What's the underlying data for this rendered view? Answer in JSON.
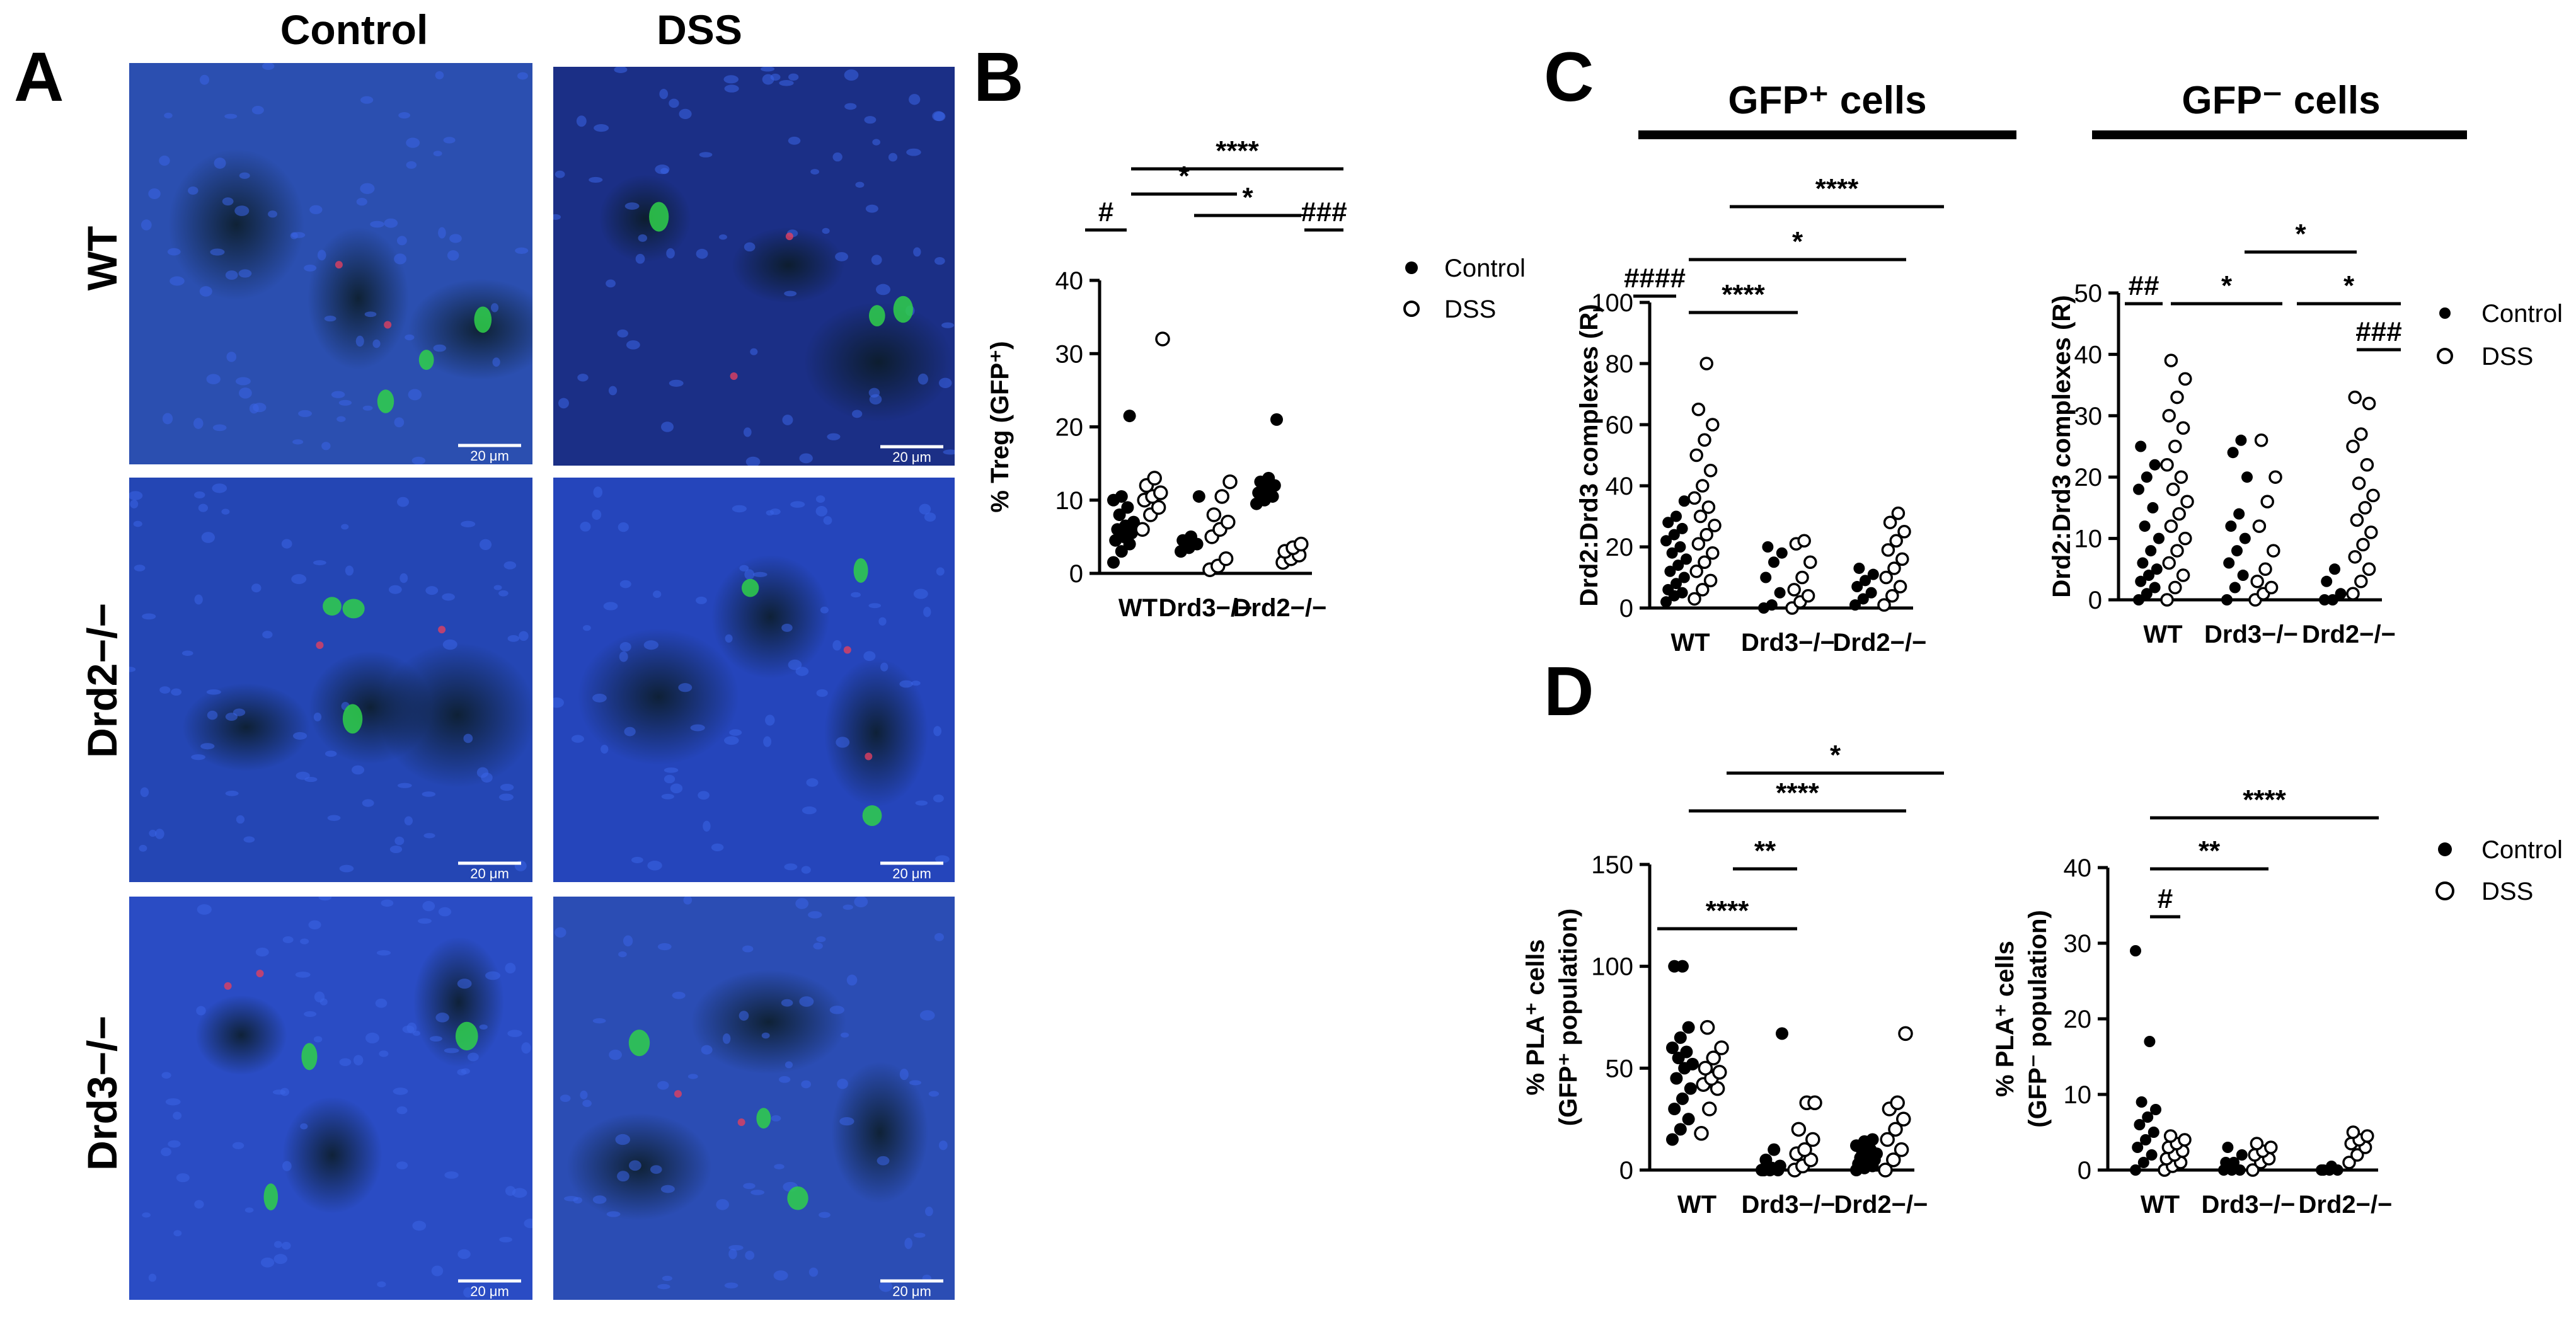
{
  "panel_letters": {
    "a": "A",
    "b": "B",
    "c": "C",
    "d": "D"
  },
  "micrographs": {
    "columns": [
      "Control",
      "DSS"
    ],
    "rows": [
      "WT",
      "Drd2−/−",
      "Drd3−/−"
    ],
    "scale_bar": "20 μm"
  },
  "legend": {
    "control": "Control",
    "dss": "DSS"
  },
  "headers": {
    "gfp_pos": "GFP⁺ cells",
    "gfp_neg": "GFP⁻ cells"
  },
  "colors": {
    "nuclei": "#2a44c8",
    "gfp": "#2fd04a",
    "pla": "#e04060"
  },
  "chart_data": [
    {
      "id": "B",
      "type": "scatter",
      "ylabel": "% Treg (GFP⁺)",
      "ylim": [
        0,
        40
      ],
      "yticks": [
        0,
        10,
        20,
        30,
        40
      ],
      "categories": [
        "WT",
        "Drd3−/−",
        "Drd2−/−"
      ],
      "series": [
        {
          "name": "Control",
          "values": [
            [
              1.5,
              3,
              4,
              4.5,
              5,
              5.5,
              6,
              6.5,
              7,
              8,
              9,
              10,
              10.5,
              21.5
            ],
            [
              3,
              3.5,
              4,
              4.5,
              5,
              10.5
            ],
            [
              9.5,
              10,
              10.5,
              11,
              11.5,
              12,
              12.5,
              13,
              21
            ]
          ]
        },
        {
          "name": "DSS",
          "values": [
            [
              6,
              8,
              9,
              10,
              10.5,
              11,
              12,
              13,
              32
            ],
            [
              0.5,
              1,
              2,
              5,
              6,
              7,
              8,
              10.5,
              12.5
            ],
            [
              1.5,
              2,
              2.5,
              3,
              3.5,
              4
            ]
          ]
        }
      ],
      "significance": [
        {
          "label": "#",
          "from": "WT Control",
          "to": "WT DSS"
        },
        {
          "label": "*",
          "from": "WT DSS",
          "to": "Drd3−/− DSS"
        },
        {
          "label": "****",
          "from": "WT DSS",
          "to": "Drd2−/− DSS"
        },
        {
          "label": "*",
          "from": "Drd3−/− DSS",
          "to": "Drd2−/− DSS"
        },
        {
          "label": "###",
          "from": "Drd2−/− Control",
          "to": "Drd2−/− DSS"
        }
      ]
    },
    {
      "id": "C-GFP+",
      "type": "scatter",
      "ylabel": "Drd2:Drd3 complexes (R)",
      "ylim": [
        0,
        100
      ],
      "yticks": [
        0,
        20,
        40,
        60,
        80,
        100
      ],
      "categories": [
        "WT",
        "Drd3−/−",
        "Drd2−/−"
      ],
      "series": [
        {
          "name": "Control",
          "values": [
            [
              2,
              4,
              5,
              6,
              8,
              10,
              12,
              14,
              16,
              18,
              20,
              22,
              24,
              26,
              28,
              30,
              35
            ],
            [
              0,
              1,
              5,
              10,
              15,
              18,
              20
            ],
            [
              1,
              3,
              5,
              7,
              9,
              11,
              13
            ]
          ]
        },
        {
          "name": "DSS",
          "values": [
            [
              3,
              6,
              9,
              12,
              15,
              18,
              21,
              24,
              27,
              30,
              33,
              36,
              40,
              45,
              50,
              55,
              60,
              65,
              80
            ],
            [
              0,
              2,
              4,
              6,
              10,
              15,
              21,
              22
            ],
            [
              1,
              4,
              7,
              10,
              13,
              16,
              19,
              22,
              25,
              28,
              31
            ]
          ]
        }
      ],
      "significance": [
        {
          "label": "####",
          "from": "WT Control",
          "to": "WT DSS"
        },
        {
          "label": "****",
          "from": "WT DSS",
          "to": "Drd3−/− DSS"
        },
        {
          "label": "*",
          "from": "WT DSS",
          "to": "Drd2−/− Control"
        },
        {
          "label": "****",
          "from": "WT DSS",
          "to": "Drd2−/− DSS"
        }
      ]
    },
    {
      "id": "C-GFP-",
      "type": "scatter",
      "ylabel": "Drd2:Drd3 complexes (R)",
      "ylim": [
        0,
        50
      ],
      "yticks": [
        0,
        10,
        20,
        30,
        40,
        50
      ],
      "categories": [
        "WT",
        "Drd3−/−",
        "Drd2−/−"
      ],
      "series": [
        {
          "name": "Control",
          "values": [
            [
              0,
              1,
              2,
              3,
              4,
              5,
              6,
              8,
              10,
              12,
              15,
              18,
              20,
              22,
              25
            ],
            [
              0,
              2,
              4,
              6,
              8,
              10,
              12,
              14,
              20,
              24,
              26
            ],
            [
              0,
              0,
              1,
              3,
              5
            ]
          ]
        },
        {
          "name": "DSS",
          "values": [
            [
              0,
              2,
              4,
              6,
              8,
              10,
              12,
              14,
              16,
              18,
              20,
              22,
              25,
              28,
              30,
              33,
              36,
              39
            ],
            [
              0,
              1,
              2,
              3,
              5,
              8,
              12,
              16,
              20,
              26
            ],
            [
              1,
              3,
              5,
              7,
              9,
              11,
              13,
              15,
              17,
              19,
              22,
              25,
              27,
              32,
              33
            ]
          ]
        }
      ],
      "significance": [
        {
          "label": "##",
          "from": "WT Control",
          "to": "WT DSS"
        },
        {
          "label": "*",
          "from": "WT DSS",
          "to": "Drd3−/− DSS"
        },
        {
          "label": "*",
          "from": "Drd3−/− Control",
          "to": "Drd2−/− Control"
        },
        {
          "label": "*",
          "from": "Drd3−/− DSS",
          "to": "Drd2−/− DSS"
        },
        {
          "label": "###",
          "from": "Drd2−/− Control",
          "to": "Drd2−/− DSS"
        }
      ]
    },
    {
      "id": "D-GFP+",
      "type": "scatter",
      "ylabel": "% PLA⁺ cells",
      "ylabel2": "(GFP⁺ population)",
      "ylim": [
        0,
        150
      ],
      "yticks": [
        0,
        50,
        100,
        150
      ],
      "categories": [
        "WT",
        "Drd3−/−",
        "Drd2−/−"
      ],
      "series": [
        {
          "name": "Control",
          "values": [
            [
              15,
              20,
              25,
              30,
              35,
              40,
              45,
              50,
              52,
              55,
              58,
              60,
              65,
              70,
              100,
              100
            ],
            [
              0,
              0,
              0,
              0,
              1,
              2,
              5,
              10,
              67
            ],
            [
              0,
              1,
              2,
              3,
              4,
              5,
              6,
              7,
              8,
              9,
              10,
              12,
              14,
              15
            ]
          ]
        },
        {
          "name": "DSS",
          "values": [
            [
              18,
              30,
              40,
              42,
              45,
              48,
              50,
              55,
              60,
              70
            ],
            [
              0,
              2,
              5,
              8,
              10,
              15,
              20,
              33,
              33
            ],
            [
              0,
              5,
              10,
              15,
              20,
              25,
              30,
              33,
              67
            ]
          ]
        }
      ],
      "significance": [
        {
          "label": "****",
          "from": "WT Control",
          "to": "Drd3−/− Control"
        },
        {
          "label": "**",
          "from": "WT DSS",
          "to": "Drd3−/− DSS"
        },
        {
          "label": "****",
          "from": "WT Control",
          "to": "Drd2−/− Control"
        },
        {
          "label": "*",
          "from": "WT DSS",
          "to": "Drd2−/− DSS"
        }
      ]
    },
    {
      "id": "D-GFP-",
      "type": "scatter",
      "ylabel": "% PLA⁺ cells",
      "ylabel2": "(GFP⁻ population)",
      "ylim": [
        0,
        40
      ],
      "yticks": [
        0,
        10,
        20,
        30,
        40
      ],
      "categories": [
        "WT",
        "Drd3−/−",
        "Drd2−/−"
      ],
      "series": [
        {
          "name": "Control",
          "values": [
            [
              0,
              1,
              2,
              3,
              4,
              5,
              6,
              7,
              8,
              9,
              17,
              29
            ],
            [
              0,
              0,
              0,
              1,
              1,
              2,
              3
            ],
            [
              0,
              0,
              0,
              0,
              0.5
            ]
          ]
        },
        {
          "name": "DSS",
          "values": [
            [
              0,
              0.5,
              1,
              1.5,
              2,
              2.5,
              3,
              3.5,
              4,
              4.5
            ],
            [
              0,
              1,
              1.5,
              2,
              2.5,
              3,
              3.5
            ],
            [
              1,
              2,
              3,
              3.5,
              4,
              4.5,
              5
            ]
          ]
        }
      ],
      "significance": [
        {
          "label": "#",
          "from": "WT Control",
          "to": "WT DSS"
        },
        {
          "label": "**",
          "from": "WT Control",
          "to": "Drd3−/− Control"
        },
        {
          "label": "****",
          "from": "WT Control",
          "to": "Drd2−/− Control"
        }
      ]
    }
  ]
}
